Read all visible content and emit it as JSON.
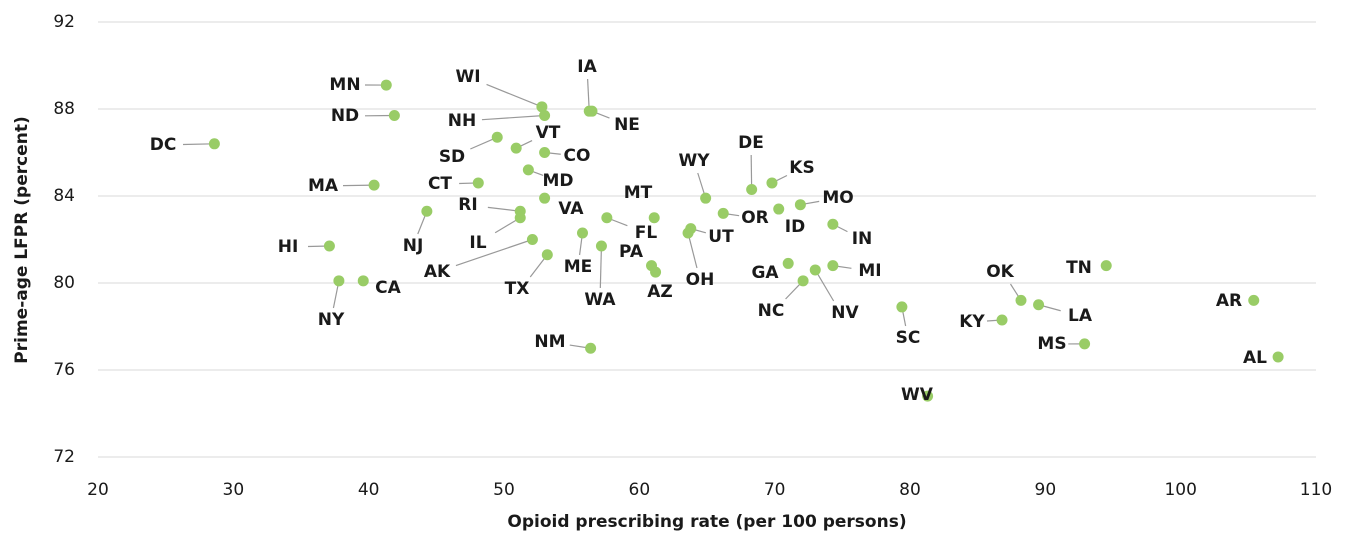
{
  "chart_data": {
    "type": "scatter",
    "xlabel": "Opioid prescribing rate (per 100 persons)",
    "ylabel": "Prime-age LFPR (percent)",
    "color": "#99cc66",
    "xlim": [
      20,
      110
    ],
    "xticks": [
      20,
      30,
      40,
      50,
      60,
      70,
      80,
      90,
      100,
      110
    ],
    "ylim": [
      72,
      92
    ],
    "yticks": [
      72,
      76,
      80,
      84,
      88,
      92
    ],
    "grid": true,
    "point_labels": [
      "DC",
      "MN",
      "ND",
      "WI",
      "NH",
      "IA",
      "NE",
      "VT",
      "SD",
      "CO",
      "MD",
      "MA",
      "CT",
      "VA",
      "RI",
      "IL",
      "NJ",
      "HI",
      "AK",
      "ME",
      "TX",
      "WA",
      "MT",
      "FL",
      "PA",
      "AZ",
      "UT",
      "OH",
      "WY",
      "OR",
      "DE",
      "KS",
      "ID",
      "MO",
      "IN",
      "GA",
      "MI",
      "NV",
      "NC",
      "SC",
      "WV",
      "OK",
      "LA",
      "KY",
      "MS",
      "TN",
      "AR",
      "AL",
      "CA",
      "NY",
      "NM"
    ],
    "x": [
      28.6,
      41.3,
      41.9,
      52.8,
      53.0,
      56.3,
      56.5,
      50.9,
      49.5,
      53.0,
      51.8,
      40.4,
      48.1,
      53.0,
      51.2,
      51.2,
      44.3,
      37.1,
      52.1,
      55.8,
      53.2,
      57.2,
      61.1,
      57.6,
      60.9,
      61.2,
      63.8,
      63.6,
      64.9,
      66.2,
      68.3,
      69.8,
      70.3,
      71.9,
      74.3,
      71.0,
      74.3,
      73.0,
      72.1,
      79.4,
      81.3,
      88.2,
      89.5,
      86.8,
      92.9,
      94.5,
      105.4,
      107.2,
      39.6,
      37.8,
      56.4
    ],
    "values": [
      86.4,
      89.1,
      87.7,
      88.1,
      87.7,
      87.9,
      87.9,
      86.2,
      86.7,
      86.0,
      85.2,
      84.5,
      84.6,
      83.9,
      83.3,
      83.0,
      83.3,
      81.7,
      82.0,
      82.3,
      81.3,
      81.7,
      83.0,
      83.0,
      80.8,
      80.5,
      82.5,
      82.3,
      83.9,
      83.2,
      84.3,
      84.6,
      83.4,
      83.6,
      82.7,
      80.9,
      80.8,
      80.6,
      80.1,
      78.9,
      74.8,
      79.2,
      79.0,
      78.3,
      77.2,
      80.8,
      79.2,
      76.6,
      80.1,
      80.1,
      77.0
    ]
  }
}
